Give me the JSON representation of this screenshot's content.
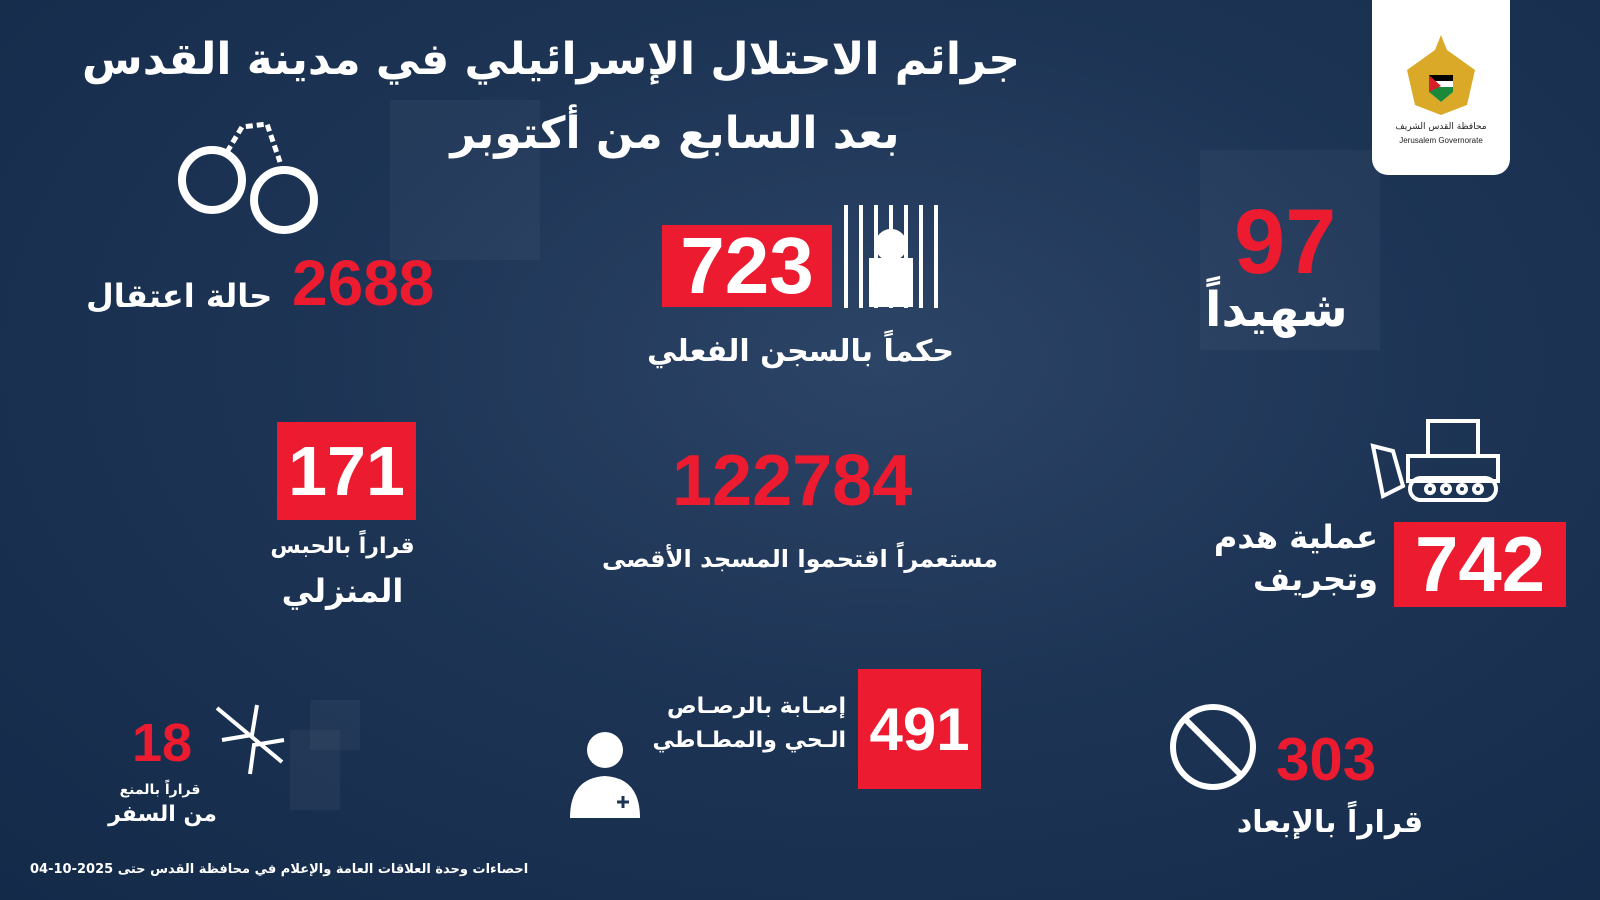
{
  "title": {
    "line1": "جرائم الاحتلال الإسرائيلي في مدينة القدس",
    "line2": "بعد السابع من أكتوبر"
  },
  "logo": {
    "arabic": "محافظة القدس الشريف",
    "english": "Jerusalem Governorate",
    "emblem_text": "فلسطين"
  },
  "stats": {
    "arrests": {
      "value": "2688",
      "label": "حالة اعتقال",
      "icon": "handcuffs-icon"
    },
    "prison": {
      "value": "723",
      "label": "حكماً بالسجن الفعلي",
      "icon": "prison-bars-icon"
    },
    "martyrs": {
      "value": "97",
      "label": "شهيداً"
    },
    "house_arrest": {
      "value": "171",
      "label1": "قراراً بالحبس",
      "label2": "المنزلي"
    },
    "settlers": {
      "value": "122784",
      "label": "مستعمراً اقتحموا المسجد الأقصى"
    },
    "demolition": {
      "value": "742",
      "label1": "عملية هدم",
      "label2": "وتجريف",
      "icon": "bulldozer-icon"
    },
    "travel_ban": {
      "value": "18",
      "label1": "قراراً بالمنع",
      "label2": "من السفر",
      "icon": "airplane-icon"
    },
    "injuries": {
      "value": "491",
      "label1": "إصـابة بالرصـاص",
      "label2": "الـحي والمطـاطي",
      "icon": "doctor-icon"
    },
    "deportation": {
      "value": "303",
      "label": "قراراً بالإبعاد",
      "icon": "prohibited-icon"
    }
  },
  "footer": "احصاءات وحدة العلاقات العامة والإعلام  في محافظة القدس حتى 2025-10-04",
  "colors": {
    "accent": "#ec1b30",
    "background": "#1d3455"
  }
}
